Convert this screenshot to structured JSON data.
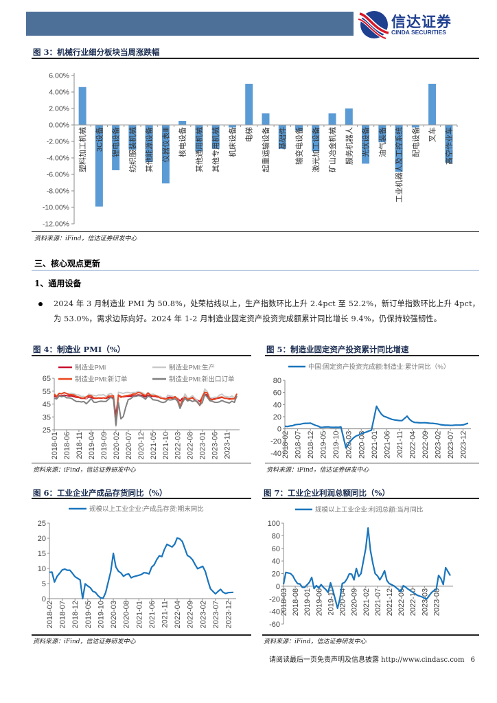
{
  "header": {
    "logo_cn": "信达证券",
    "logo_en": "CINDA SECURITIES",
    "bar_color": "#4d7098",
    "logo_colors": [
      "#d7182a",
      "#1f3f8f"
    ]
  },
  "figure3": {
    "title": "图 3：机械行业细分板块当周涨跌幅",
    "source": "资料来源：iFind，信达证券研发中心"
  },
  "section": {
    "heading": "三、核心观点更新",
    "subheading": "1、通用设备",
    "bullet": "2024 年 3 月制造业 PMI 为 50.8%，处荣枯线以上，生产指数环比上升 2.4pct 至 52.2%，新订单指数环比上升 4pct，为 53.0%，需求边际向好。2024 年 1-2 月制造业固定资产投资完成额累计同比增长 9.4%，仍保持较强韧性。"
  },
  "figure4": {
    "title": "图 4：制造业 PMI（%）",
    "source": "资料来源：iFind，信达证券研发中心"
  },
  "figure5": {
    "title": "图 5：制造业固定资产投资累计同比增速",
    "source": "资料来源：iFind，信达证券研发中心"
  },
  "figure6": {
    "title": "图 6：工业企业产成品存货同比（%）",
    "source": "资料来源：iFind，信达证券研发中心"
  },
  "figure7": {
    "title": "图 7：工业企业利润总额同比（%）",
    "source": "资料来源：iFind，信达证券研发中心"
  },
  "footer": {
    "disclaimer": "请阅读最后一页免责声明及信息披露 http://www.cindasc.com",
    "page_number": "6"
  },
  "chart_data": [
    {
      "type": "bar",
      "categories": [
        "塑料加工机械",
        "3C设备",
        "锂电设备",
        "纺织服装机械",
        "其他能源设备",
        "仪器仪表Ⅲ",
        "核电设备",
        "其他通用机械",
        "其他专用机械",
        "机床设备",
        "电梯",
        "起重运输设备",
        "基础件",
        "输变电设备",
        "激光加工设备",
        "矿山冶金机械",
        "服务机器人",
        "光伏设备",
        "油气装备",
        "工业机器人及工控系统",
        "配电设备",
        "叉车",
        "高空作业车"
      ],
      "values": [
        4.6,
        -9.9,
        -5.5,
        -3.0,
        -4.5,
        -7.1,
        0.5,
        -3.2,
        -2.9,
        -0.3,
        5.0,
        1.4,
        -2.9,
        -0.7,
        -3.2,
        1.4,
        2.0,
        -4.7,
        -2.1,
        -5.7,
        -0.3,
        5.0,
        -4.6
      ],
      "ylim": [
        -12,
        6
      ],
      "yticks": [
        "6.00%",
        "4.00%",
        "2.00%",
        "0.00%",
        "-2.00%",
        "-4.00%",
        "-6.00%",
        "-8.00%",
        "-10.00%",
        "-12.00%"
      ],
      "unit": "%",
      "color": "#5b9bd5",
      "grid": false
    },
    {
      "type": "line",
      "x_range": [
        "2018-01",
        "2024-03"
      ],
      "x_frequency": "monthly",
      "xticks": [
        "2018-01",
        "2018-06",
        "2018-11",
        "2019-04",
        "2019-09",
        "2020-02",
        "2020-07",
        "2020-12",
        "2021-05",
        "2021-10",
        "2022-03",
        "2022-08",
        "2023-01",
        "2023-06",
        "2023-11"
      ],
      "ylim": [
        25,
        65
      ],
      "yticks": [
        "65",
        "55",
        "45",
        "35",
        "25"
      ],
      "legend": "top",
      "grid": false,
      "series": [
        {
          "name": "制造业PMI",
          "color": "#c8102e",
          "values": [
            51.3,
            50.3,
            51.5,
            51.4,
            51.9,
            51.5,
            51.2,
            51.3,
            50.8,
            50.2,
            50.0,
            49.4,
            49.5,
            49.2,
            50.5,
            50.1,
            49.4,
            49.4,
            49.7,
            49.5,
            49.8,
            49.3,
            50.2,
            50.2,
            50.0,
            35.7,
            52.0,
            50.8,
            50.6,
            50.9,
            51.1,
            51.0,
            51.5,
            51.4,
            52.1,
            51.9,
            51.3,
            50.6,
            51.9,
            51.1,
            51.0,
            50.9,
            50.4,
            50.1,
            49.6,
            49.2,
            50.1,
            50.3,
            50.1,
            50.2,
            49.5,
            47.4,
            49.6,
            50.2,
            49.0,
            49.4,
            50.1,
            49.2,
            48.0,
            47.0,
            50.1,
            52.6,
            51.9,
            49.2,
            48.8,
            49.0,
            49.3,
            49.7,
            50.2,
            49.5,
            49.4,
            49.0,
            49.2,
            49.1,
            50.8
          ]
        },
        {
          "name": "制造业PMI:生产",
          "color": "#c9c9c9",
          "values": [
            53.5,
            50.7,
            53.1,
            53.1,
            54.1,
            53.0,
            53.0,
            53.3,
            53.0,
            52.0,
            52.0,
            50.8,
            50.9,
            49.5,
            52.7,
            52.1,
            51.7,
            51.3,
            52.1,
            51.9,
            52.3,
            50.8,
            52.6,
            53.2,
            51.3,
            27.8,
            54.1,
            53.7,
            53.2,
            53.9,
            54.0,
            53.5,
            54.0,
            53.9,
            54.7,
            54.2,
            53.5,
            51.9,
            53.9,
            52.2,
            52.7,
            51.9,
            50.9,
            50.9,
            49.5,
            48.4,
            52.0,
            51.4,
            50.9,
            50.4,
            49.5,
            44.4,
            47.7,
            52.8,
            49.8,
            49.8,
            51.5,
            49.6,
            47.8,
            44.6,
            49.8,
            56.7,
            54.6,
            50.2,
            49.6,
            50.3,
            50.2,
            51.9,
            52.7,
            50.9,
            50.7,
            50.2,
            51.3,
            49.8,
            52.2
          ]
        },
        {
          "name": "制造业PMI:新订单",
          "color": "#e8461e",
          "values": [
            52.6,
            51.0,
            53.3,
            52.9,
            53.8,
            53.2,
            52.3,
            52.2,
            52.0,
            50.8,
            50.4,
            49.7,
            49.6,
            50.6,
            51.6,
            51.4,
            49.8,
            49.6,
            49.8,
            49.7,
            49.8,
            49.6,
            51.3,
            51.2,
            51.4,
            29.3,
            52.0,
            50.2,
            50.9,
            51.4,
            51.7,
            52.0,
            52.8,
            52.8,
            53.9,
            53.6,
            52.3,
            51.5,
            53.6,
            52.0,
            51.3,
            51.5,
            50.9,
            49.6,
            49.3,
            48.8,
            49.4,
            49.7,
            49.3,
            50.7,
            48.8,
            42.6,
            48.2,
            50.4,
            48.5,
            49.2,
            49.8,
            48.1,
            46.4,
            43.9,
            50.9,
            54.1,
            53.6,
            48.8,
            48.3,
            48.6,
            49.5,
            50.2,
            50.5,
            49.5,
            49.4,
            48.7,
            49.0,
            49.0,
            53.0
          ]
        },
        {
          "name": "制造业PMI:新出口订单",
          "color": "#808080",
          "values": [
            49.5,
            49.0,
            51.3,
            50.7,
            51.2,
            49.8,
            49.8,
            49.4,
            48.0,
            46.9,
            47.0,
            46.6,
            46.9,
            45.2,
            47.1,
            49.2,
            46.5,
            46.3,
            46.9,
            47.2,
            47.0,
            47.0,
            48.8,
            50.3,
            48.7,
            28.7,
            46.4,
            33.5,
            35.3,
            42.6,
            48.4,
            49.1,
            50.8,
            51.0,
            51.5,
            51.3,
            50.2,
            48.8,
            51.2,
            50.4,
            48.3,
            48.1,
            47.7,
            46.7,
            46.2,
            46.6,
            48.5,
            48.1,
            48.4,
            49.0,
            47.2,
            41.6,
            46.2,
            49.5,
            47.4,
            48.1,
            47.0,
            47.6,
            46.7,
            44.2,
            46.1,
            52.4,
            50.4,
            47.6,
            47.2,
            46.4,
            46.3,
            46.7,
            47.8,
            46.8,
            46.3,
            45.8,
            47.2,
            46.3,
            51.3
          ]
        }
      ]
    },
    {
      "type": "line",
      "x_range": [
        "2018-02",
        "2024-02"
      ],
      "x_frequency": "monthly (January not published)",
      "xticks": [
        "2018-02",
        "2018-07",
        "2018-12",
        "2019-05",
        "2019-10",
        "2020-03",
        "2020-08",
        "2021-01",
        "2021-06",
        "2021-11",
        "2022-04",
        "2022-09",
        "2023-02",
        "2023-07",
        "2023-12"
      ],
      "ylim": [
        -40,
        80
      ],
      "yticks": [
        "80",
        "60",
        "40",
        "20",
        "0",
        "-20",
        "-40"
      ],
      "legend": "top",
      "grid": false,
      "series": [
        {
          "name": "中国:固定资产投资完成额:制造业:累计同比（%）",
          "color": "#1a75bc",
          "values": [
            4.3,
            3.8,
            4.8,
            5.2,
            6.8,
            7.3,
            7.5,
            8.7,
            9.1,
            9.1,
            9.5,
            null,
            5.9,
            4.6,
            2.5,
            2.7,
            3.0,
            3.3,
            2.6,
            2.5,
            2.6,
            2.5,
            3.1,
            null,
            -31.5,
            -25.2,
            -18.8,
            -14.8,
            -11.7,
            -10.2,
            -8.1,
            -6.5,
            -5.3,
            -3.5,
            -2.2,
            null,
            37.3,
            29.8,
            23.8,
            20.4,
            19.2,
            17.3,
            15.7,
            14.8,
            14.2,
            13.7,
            13.5,
            null,
            20.9,
            15.6,
            12.2,
            10.6,
            10.4,
            9.9,
            10.0,
            10.1,
            9.7,
            9.3,
            9.1,
            null,
            8.1,
            7.0,
            6.4,
            6.0,
            6.0,
            5.7,
            5.9,
            6.2,
            6.2,
            6.3,
            6.5,
            null,
            9.4
          ]
        }
      ]
    },
    {
      "type": "line",
      "x_range": [
        "2018-02",
        "2024-02"
      ],
      "x_frequency": "monthly (January not published)",
      "xticks": [
        "2018-02",
        "2018-07",
        "2018-12",
        "2019-05",
        "2019-10",
        "2020-03",
        "2020-08",
        "2021-01",
        "2021-06",
        "2021-11",
        "2022-04",
        "2022-09",
        "2023-02",
        "2023-07",
        "2023-12"
      ],
      "ylim": [
        0,
        25
      ],
      "yticks": [
        "25",
        "20",
        "15",
        "10",
        "5",
        "0"
      ],
      "legend": "top",
      "grid": false,
      "series": [
        {
          "name": "规模以上工业企业:产成品存货:期末同比",
          "color": "#1a75bc",
          "values": [
            8.7,
            8.8,
            5.5,
            7.4,
            8.4,
            9.5,
            9.8,
            9.4,
            9.4,
            8.4,
            7.3,
            null,
            6.2,
            0.0,
            4.9,
            4.2,
            3.6,
            2.4,
            2.1,
            1.0,
            0.3,
            0.1,
            2.0,
            null,
            8.9,
            15.0,
            10.5,
            9.1,
            8.5,
            7.4,
            8.0,
            8.2,
            6.9,
            7.3,
            7.5,
            null,
            8.0,
            8.6,
            8.5,
            8.2,
            10.4,
            11.2,
            12.9,
            14.2,
            13.9,
            16.3,
            18.0,
            null,
            17.1,
            18.0,
            20.1,
            19.8,
            18.9,
            16.6,
            14.3,
            13.8,
            12.9,
            11.3,
            9.9,
            null,
            10.7,
            9.0,
            6.0,
            3.3,
            2.4,
            1.6,
            2.4,
            3.1,
            2.1,
            1.7,
            2.0,
            null,
            2.1
          ]
        }
      ]
    },
    {
      "type": "line",
      "x_range": [
        "2018-03",
        "2024-02"
      ],
      "x_frequency": "monthly (January not published)",
      "xticks": [
        "2018-03",
        "2018-08",
        "2019-01",
        "2019-06",
        "2019-11",
        "2020-04",
        "2020-09",
        "2021-02",
        "2021-07",
        "2021-12",
        "2022-05",
        "2022-10",
        "2023-03",
        "2023-08"
      ],
      "ylim": [
        -60,
        100
      ],
      "yticks": [
        "100",
        "80",
        "60",
        "40",
        "20",
        "0",
        "-20",
        "-40",
        "-60"
      ],
      "legend": "top",
      "grid": false,
      "series": [
        {
          "name": "规模以上工业企业:利润总额:当月同比",
          "color": "#1a75bc",
          "values": [
            3.1,
            21.9,
            21.1,
            20.0,
            16.2,
            9.2,
            4.1,
            3.6,
            -1.8,
            -1.9,
            null,
            6.0,
            13.9,
            -3.7,
            1.1,
            -3.1,
            2.6,
            -2.0,
            -5.3,
            -9.9,
            5.4,
            -6.3,
            null,
            -35.0,
            -20.0,
            4.3,
            6.0,
            11.5,
            19.6,
            19.1,
            10.1,
            28.2,
            15.5,
            20.1,
            null,
            60.0,
            92.3,
            57.0,
            36.4,
            20.0,
            16.4,
            10.1,
            16.3,
            24.6,
            9.0,
            4.2,
            null,
            0.5,
            -2.5,
            -5.5,
            -8.5,
            0.8,
            -1.5,
            -4.5,
            -7.0,
            -9.5,
            -12.0,
            -14.5,
            null,
            -17.0,
            -19.2,
            -20.0,
            -15.0,
            -10.0,
            -7.0,
            -5.0,
            17.2,
            11.9,
            2.7,
            29.5,
            null,
            16.8
          ]
        }
      ]
    }
  ]
}
